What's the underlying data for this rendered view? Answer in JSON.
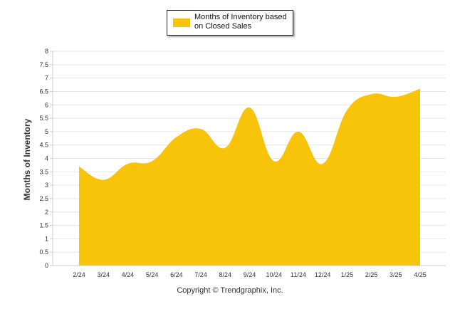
{
  "chart_data": {
    "type": "area",
    "categories": [
      "2/24",
      "3/24",
      "4/24",
      "5/24",
      "6/24",
      "7/24",
      "8/24",
      "9/24",
      "10/24",
      "11/24",
      "12/24",
      "1/25",
      "2/25",
      "3/25",
      "4/25"
    ],
    "series": [
      {
        "name": "Months of Inventory based on Closed Sales",
        "values": [
          3.7,
          3.2,
          3.8,
          3.9,
          4.8,
          5.1,
          4.4,
          5.9,
          3.9,
          5.0,
          3.8,
          5.8,
          6.4,
          6.3,
          6.6
        ],
        "color": "#F8C40A"
      }
    ],
    "ylabel": "Months of Inventory",
    "xlabel": "",
    "ylim": [
      0,
      8
    ],
    "yticks": [
      "0",
      "0.5",
      "1",
      "1.5",
      "2",
      "2.5",
      "3",
      "3.5",
      "4",
      "4.5",
      "5",
      "5.5",
      "6",
      "6.5",
      "7",
      "7.5",
      "8"
    ],
    "grid": true,
    "legend": {
      "position": "top-center",
      "label": "Months of Inventory based on Closed Sales"
    }
  },
  "footer": {
    "copyright": "Copyright © Trendgraphix, Inc."
  },
  "colors": {
    "area": "#F8C40A",
    "grid": "#E6E6E6",
    "axis": "#CCCCCC"
  }
}
